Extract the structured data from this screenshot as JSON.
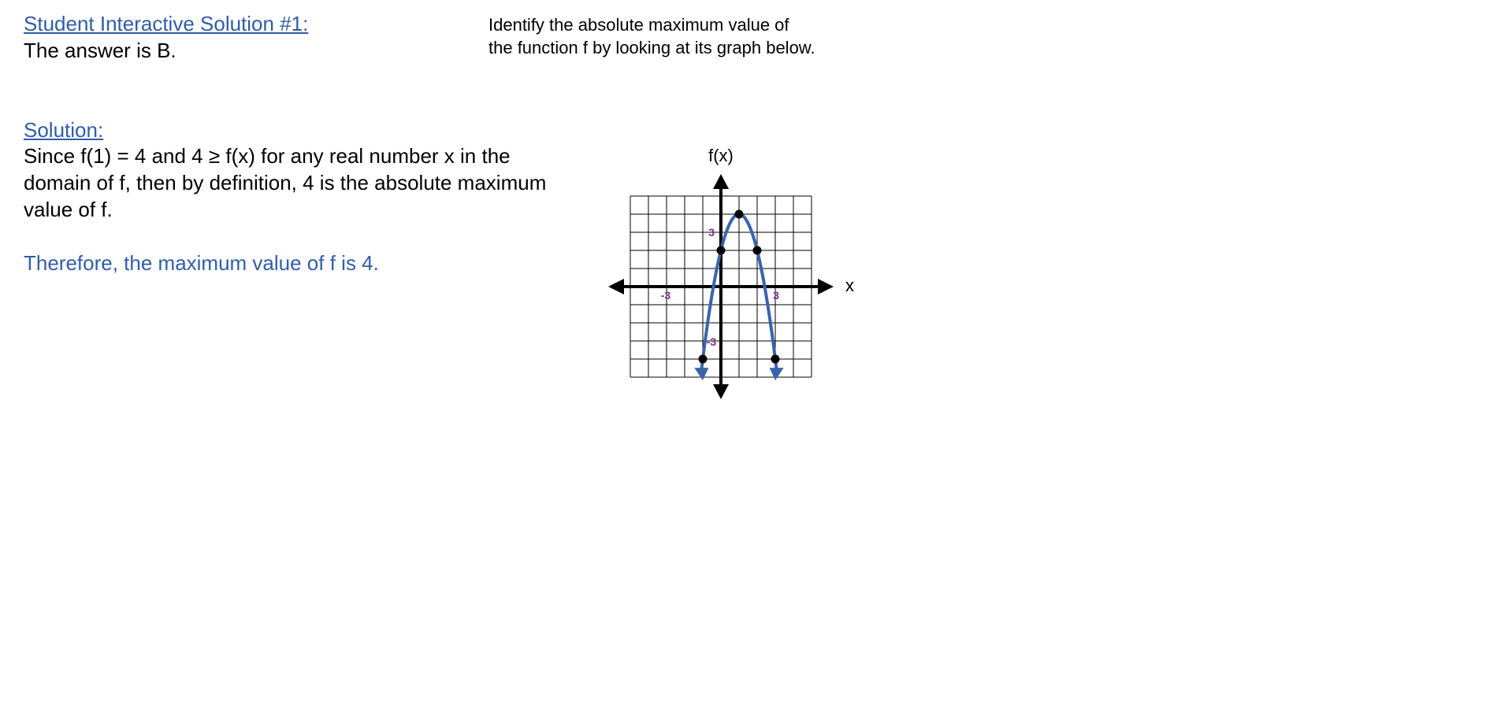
{
  "answer": {
    "heading": "Student Interactive Solution #1:",
    "text": "The answer is B."
  },
  "question": {
    "line1": "Identify the absolute maximum value of",
    "line2": "the function f by looking at its graph below."
  },
  "solution": {
    "heading": "Solution:",
    "lines": [
      "Since f(1) = 4 and 4 ≥ f(x) for any real number x in the",
      "domain of f, then by definition, 4 is the absolute maximum",
      "value of f."
    ],
    "conclusion": "Therefore, the maximum value of f is 4."
  },
  "graph": {
    "y_axis_label": "f(x)",
    "x_axis_label": "x",
    "tick_labels": {
      "x_neg": "-3",
      "x_pos": "3",
      "y_pos": "3",
      "y_neg": "-3"
    },
    "x_range": [
      -5,
      5
    ],
    "y_range": [
      -5,
      5
    ],
    "curve_points": [
      [
        -1,
        -4
      ],
      [
        0,
        2
      ],
      [
        1,
        4
      ],
      [
        2,
        2
      ],
      [
        3,
        -4
      ]
    ],
    "colors": {
      "curve": "#3a63ad",
      "tick_label": "#7b2f8f",
      "axis": "#000000",
      "grid": "#000000"
    }
  }
}
